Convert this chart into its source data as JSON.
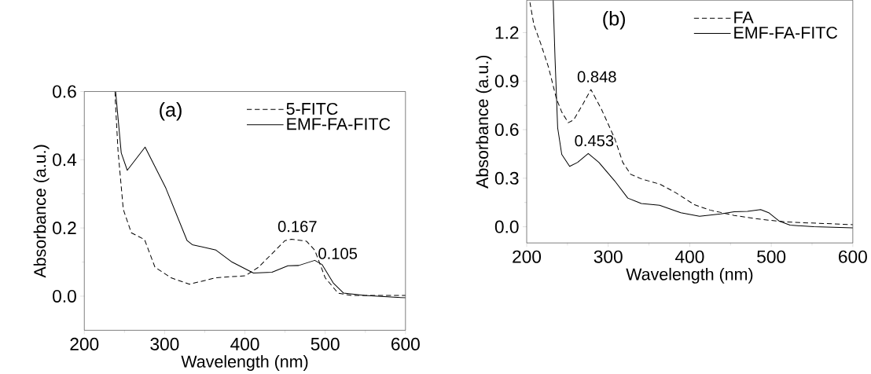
{
  "chart_data": [
    {
      "type": "line",
      "xlabel": "Wavelength (nm)",
      "ylabel": "Absorbance (a.u.)",
      "xlim": [
        200,
        600
      ],
      "ylim": [
        -0.1,
        0.6
      ],
      "xticks": [
        200,
        300,
        400,
        500,
        600
      ],
      "yticks": [
        {
          "value": 0.0,
          "label": "0.0"
        },
        {
          "value": 0.2,
          "label": "0.2"
        },
        {
          "value": 0.4,
          "label": "0.4"
        },
        {
          "value": 0.6,
          "label": "0.6"
        }
      ],
      "legend": "top right",
      "grid": false,
      "annotations": [
        "(a)",
        {
          "text": "0.167",
          "x": 458,
          "y": 0.167
        },
        {
          "text": "0.105",
          "x": 487,
          "y": 0.105
        }
      ],
      "series": [
        {
          "name": "5-FITC",
          "color": "#000000",
          "line_style": "dashed",
          "x": [
            238,
            242,
            248.5,
            258.5,
            275,
            288,
            308,
            331,
            364,
            400.7,
            417,
            450,
            458,
            476.8,
            487,
            500,
            516,
            533,
            600
          ],
          "values": [
            0.6,
            0.426,
            0.255,
            0.186,
            0.166,
            0.085,
            0.054,
            0.035,
            0.054,
            0.06,
            0.085,
            0.163,
            0.167,
            0.161,
            0.135,
            0.054,
            0.009,
            0.002,
            0.002
          ]
        },
        {
          "name": "EMF-FA-FITC",
          "color": "#000000",
          "line_style": "solid",
          "x": [
            239,
            246,
            253.5,
            275.7,
            301.5,
            328,
            334.5,
            364,
            384,
            410.6,
            433.7,
            453.6,
            467,
            487,
            496,
            510,
            523,
            549,
            600
          ],
          "values": [
            0.6,
            0.42,
            0.369,
            0.437,
            0.317,
            0.163,
            0.151,
            0.135,
            0.1,
            0.068,
            0.07,
            0.089,
            0.09,
            0.105,
            0.093,
            0.039,
            0.009,
            0.002,
            -0.005
          ]
        }
      ]
    },
    {
      "type": "line",
      "xlabel": "Wavelength (nm)",
      "ylabel": "Absorbance (a.u.)",
      "xlim": [
        200,
        600
      ],
      "ylim": [
        -0.1,
        1.4
      ],
      "xticks": [
        200,
        300,
        400,
        500,
        600
      ],
      "yticks": [
        {
          "value": 0.0,
          "label": "0.0"
        },
        {
          "value": 0.3,
          "label": "0.3"
        },
        {
          "value": 0.6,
          "label": "0.6"
        },
        {
          "value": 0.9,
          "label": "0.9"
        },
        {
          "value": 1.2,
          "label": "1.2"
        }
      ],
      "legend": "top right",
      "grid": false,
      "annotations": [
        "(b)",
        {
          "text": "0.848",
          "x": 278.8,
          "y": 0.848
        },
        {
          "text": "0.453",
          "x": 275.5,
          "y": 0.453
        }
      ],
      "series": [
        {
          "name": "FA",
          "color": "#000000",
          "line_style": "dashed",
          "x": [
            203.9,
            208.8,
            217,
            226.7,
            236.5,
            243,
            251,
            257.6,
            269,
            278.8,
            291.8,
            308,
            317.8,
            327.6,
            340.6,
            363,
            383,
            405.7,
            425,
            454.5,
            487,
            519.6,
            600
          ],
          "values": [
            1.388,
            1.249,
            1.135,
            0.987,
            0.791,
            0.709,
            0.643,
            0.66,
            0.758,
            0.848,
            0.725,
            0.545,
            0.398,
            0.324,
            0.296,
            0.264,
            0.21,
            0.136,
            0.103,
            0.07,
            0.046,
            0.029,
            0.013
          ]
        },
        {
          "name": "EMF-FA-FITC",
          "color": "#000000",
          "line_style": "solid",
          "x": [
            232.5,
            234.8,
            238,
            243,
            252.7,
            262.5,
            275.5,
            288.5,
            308,
            324,
            340.6,
            363,
            389,
            412,
            438,
            454.5,
            470.8,
            487,
            496.8,
            510,
            523,
            552,
            600
          ],
          "values": [
            1.4,
            1.036,
            0.611,
            0.447,
            0.373,
            0.398,
            0.453,
            0.398,
            0.283,
            0.177,
            0.144,
            0.133,
            0.087,
            0.065,
            0.079,
            0.093,
            0.095,
            0.106,
            0.087,
            0.034,
            0.01,
            0.0,
            -0.007
          ]
        }
      ]
    }
  ]
}
